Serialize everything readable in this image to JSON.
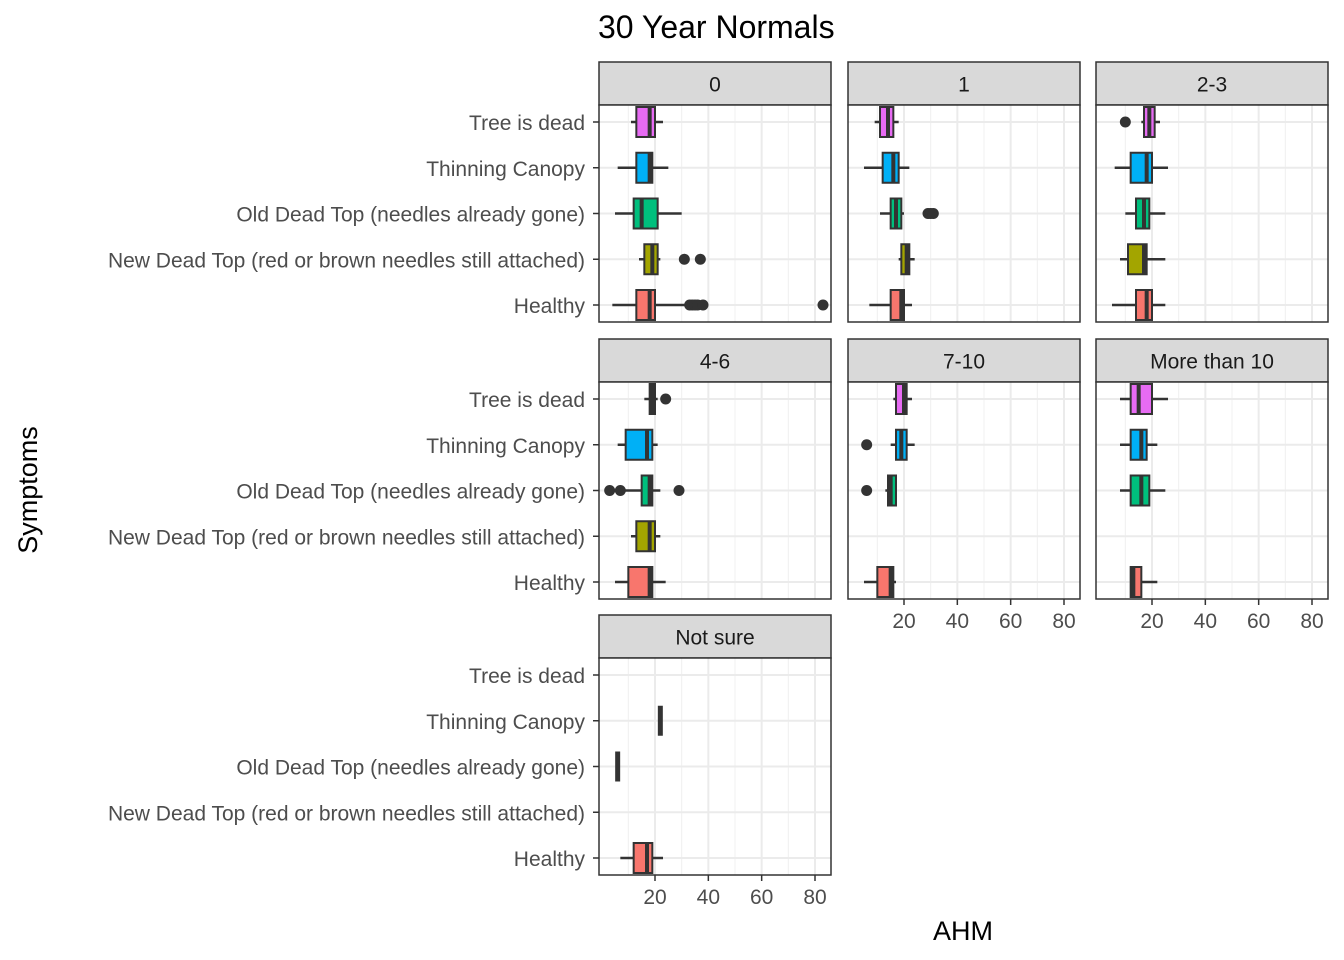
{
  "chart_data": {
    "type": "boxplot",
    "title": "30 Year Normals",
    "xlabel": "AHM",
    "ylabel": "Symptoms",
    "xlim": [
      -1,
      86
    ],
    "x_ticks": [
      20,
      40,
      60,
      80
    ],
    "grid": true,
    "legend": "none",
    "categories": [
      "Tree is dead",
      "Thinning Canopy",
      "Old Dead Top (needles already gone)",
      "New Dead Top (red or brown needles still attached)",
      "Healthy"
    ],
    "colors": {
      "Tree is dead": "#E76BF3",
      "Thinning Canopy": "#00B0F6",
      "Old Dead Top (needles already gone)": "#00BF7D",
      "New Dead Top (red or brown needles still attached)": "#A3A500",
      "Healthy": "#F8766D"
    },
    "panels": [
      {
        "label": "0",
        "boxes": [
          {
            "category": "Tree is dead",
            "whisker_low": 11,
            "q1": 13,
            "median": 18,
            "q3": 20,
            "whisker_high": 23,
            "outliers": []
          },
          {
            "category": "Thinning Canopy",
            "whisker_low": 6,
            "q1": 13,
            "median": 18,
            "q3": 19,
            "whisker_high": 25,
            "outliers": []
          },
          {
            "category": "Old Dead Top (needles already gone)",
            "whisker_low": 5,
            "q1": 12,
            "median": 15,
            "q3": 21,
            "whisker_high": 30,
            "outliers": []
          },
          {
            "category": "New Dead Top (red or brown needles still attached)",
            "whisker_low": 14,
            "q1": 16,
            "median": 19,
            "q3": 21,
            "whisker_high": 22,
            "outliers": [
              31,
              37
            ]
          },
          {
            "category": "Healthy",
            "whisker_low": 4,
            "q1": 13,
            "median": 18,
            "q3": 20,
            "whisker_high": 32,
            "outliers": [
              33,
              34,
              35,
              36,
              38,
              83
            ]
          }
        ]
      },
      {
        "label": "1",
        "boxes": [
          {
            "category": "Tree is dead",
            "whisker_low": 9,
            "q1": 11,
            "median": 14,
            "q3": 16,
            "whisker_high": 18,
            "outliers": []
          },
          {
            "category": "Thinning Canopy",
            "whisker_low": 5,
            "q1": 12,
            "median": 16,
            "q3": 18,
            "whisker_high": 22,
            "outliers": []
          },
          {
            "category": "Old Dead Top (needles already gone)",
            "whisker_low": 11,
            "q1": 15,
            "median": 17,
            "q3": 19,
            "whisker_high": 20,
            "outliers": [
              29,
              30,
              31
            ]
          },
          {
            "category": "New Dead Top (red or brown needles still attached)",
            "whisker_low": 18,
            "q1": 19,
            "median": 21,
            "q3": 22,
            "whisker_high": 24,
            "outliers": []
          },
          {
            "category": "Healthy",
            "whisker_low": 7,
            "q1": 15,
            "median": 19,
            "q3": 20,
            "whisker_high": 23,
            "outliers": []
          }
        ]
      },
      {
        "label": "2-3",
        "boxes": [
          {
            "category": "Tree is dead",
            "whisker_low": 16,
            "q1": 17,
            "median": 19,
            "q3": 21,
            "whisker_high": 23,
            "outliers": [
              10
            ]
          },
          {
            "category": "Thinning Canopy",
            "whisker_low": 6,
            "q1": 12,
            "median": 18,
            "q3": 20,
            "whisker_high": 26,
            "outliers": []
          },
          {
            "category": "Old Dead Top (needles already gone)",
            "whisker_low": 10,
            "q1": 14,
            "median": 17,
            "q3": 19,
            "whisker_high": 25,
            "outliers": []
          },
          {
            "category": "New Dead Top (red or brown needles still attached)",
            "whisker_low": 8,
            "q1": 11,
            "median": 17,
            "q3": 18,
            "whisker_high": 25,
            "outliers": []
          },
          {
            "category": "Healthy",
            "whisker_low": 5,
            "q1": 14,
            "median": 18,
            "q3": 20,
            "whisker_high": 25,
            "outliers": []
          }
        ]
      },
      {
        "label": "4-6",
        "boxes": [
          {
            "category": "Tree is dead",
            "whisker_low": 16,
            "q1": 18,
            "median": 19,
            "q3": 20,
            "whisker_high": 21,
            "outliers": [
              24
            ]
          },
          {
            "category": "Thinning Canopy",
            "whisker_low": 6,
            "q1": 9,
            "median": 17,
            "q3": 19,
            "whisker_high": 21,
            "outliers": []
          },
          {
            "category": "Old Dead Top (needles already gone)",
            "whisker_low": 8,
            "q1": 15,
            "median": 18,
            "q3": 19,
            "whisker_high": 22,
            "outliers": [
              3,
              7,
              29
            ]
          },
          {
            "category": "New Dead Top (red or brown needles still attached)",
            "whisker_low": 11,
            "q1": 13,
            "median": 18,
            "q3": 20,
            "whisker_high": 22,
            "outliers": []
          },
          {
            "category": "Healthy",
            "whisker_low": 5,
            "q1": 10,
            "median": 18,
            "q3": 19,
            "whisker_high": 24,
            "outliers": []
          }
        ]
      },
      {
        "label": "7-10",
        "boxes": [
          {
            "category": "Tree is dead",
            "whisker_low": 16,
            "q1": 17,
            "median": 20,
            "q3": 21,
            "whisker_high": 23,
            "outliers": []
          },
          {
            "category": "Thinning Canopy",
            "whisker_low": 15,
            "q1": 17,
            "median": 19,
            "q3": 21,
            "whisker_high": 24,
            "outliers": [
              6
            ]
          },
          {
            "category": "Old Dead Top (needles already gone)",
            "whisker_low": 13,
            "q1": 14,
            "median": 15,
            "q3": 17,
            "whisker_high": 17,
            "outliers": [
              6
            ]
          },
          {
            "category": "Healthy",
            "whisker_low": 5,
            "q1": 10,
            "median": 15,
            "q3": 16,
            "whisker_high": 17,
            "outliers": []
          }
        ]
      },
      {
        "label": "More than 10",
        "boxes": [
          {
            "category": "Tree is dead",
            "whisker_low": 8,
            "q1": 12,
            "median": 15,
            "q3": 20,
            "whisker_high": 26,
            "outliers": []
          },
          {
            "category": "Thinning Canopy",
            "whisker_low": 8,
            "q1": 12,
            "median": 16,
            "q3": 18,
            "whisker_high": 22,
            "outliers": []
          },
          {
            "category": "Old Dead Top (needles already gone)",
            "whisker_low": 8,
            "q1": 12,
            "median": 16,
            "q3": 19,
            "whisker_high": 25,
            "outliers": []
          },
          {
            "category": "Healthy",
            "whisker_low": 12,
            "q1": 12,
            "median": 13,
            "q3": 16,
            "whisker_high": 22,
            "outliers": []
          }
        ]
      },
      {
        "label": "Not sure",
        "boxes": [
          {
            "category": "Thinning Canopy",
            "whisker_low": 22,
            "q1": 22,
            "median": 22,
            "q3": 22,
            "whisker_high": 22,
            "outliers": []
          },
          {
            "category": "Old Dead Top (needles already gone)",
            "whisker_low": 6,
            "q1": 6,
            "median": 6,
            "q3": 6,
            "whisker_high": 6,
            "outliers": []
          },
          {
            "category": "Healthy",
            "whisker_low": 7,
            "q1": 12,
            "median": 17,
            "q3": 19,
            "whisker_high": 23,
            "outliers": []
          }
        ]
      }
    ]
  }
}
